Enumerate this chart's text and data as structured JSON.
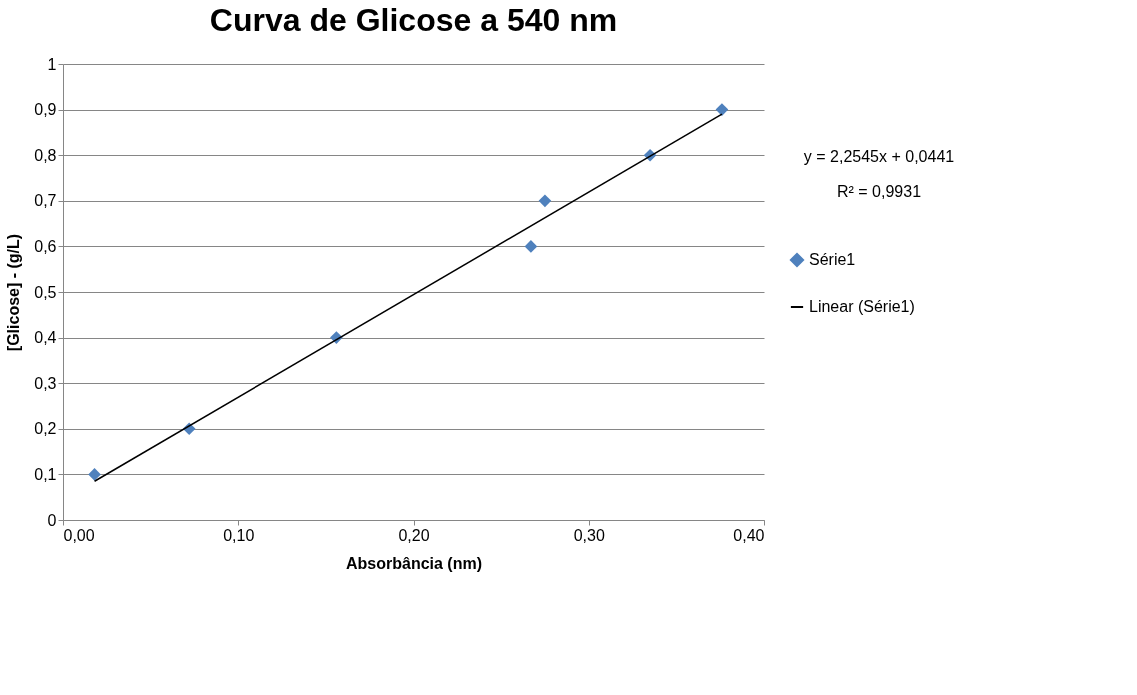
{
  "chart_data": {
    "type": "scatter",
    "title": "Curva de Glicose a 540  nm",
    "xlabel": "Absorbância  (nm)",
    "ylabel": "[Glicose] -  (g/L)",
    "series": [
      {
        "name": "Série1",
        "color": "#4f81bd",
        "marker": "diamond",
        "x": [
          0.018,
          0.072,
          0.156,
          0.267,
          0.275,
          0.335,
          0.376
        ],
        "values": [
          0.1,
          0.2,
          0.4,
          0.6,
          0.7,
          0.8,
          0.9
        ]
      },
      {
        "name": "Linear (Série1)",
        "type": "line",
        "color": "#000000",
        "line_style": "solid",
        "x": [
          0.018,
          0.376
        ],
        "values": [
          0.085,
          0.89
        ]
      }
    ],
    "annotations": [
      "y = 2,2545x + 0,0441",
      "R² = 0,9931"
    ],
    "xlim": [
      0,
      0.4
    ],
    "ylim": [
      0,
      1
    ],
    "xticks": [
      {
        "value": 0,
        "label": "0,00"
      },
      {
        "value": 0.1,
        "label": "0,10"
      },
      {
        "value": 0.2,
        "label": "0,20"
      },
      {
        "value": 0.3,
        "label": "0,30"
      },
      {
        "value": 0.4,
        "label": "0,40"
      }
    ],
    "yticks": [
      0,
      {
        "value": 0.1,
        "label": "0,1"
      },
      {
        "value": 0.2,
        "label": "0,2"
      },
      {
        "value": 0.3,
        "label": "0,3"
      },
      {
        "value": 0.4,
        "label": "0,4"
      },
      {
        "value": 0.5,
        "label": "0,5"
      },
      {
        "value": 0.6,
        "label": "0,6"
      },
      {
        "value": 0.7,
        "label": "0,7"
      },
      {
        "value": 0.8,
        "label": "0,8"
      },
      {
        "value": 0.9,
        "label": "0,9"
      },
      1
    ],
    "grid": "y",
    "legend": "right"
  }
}
